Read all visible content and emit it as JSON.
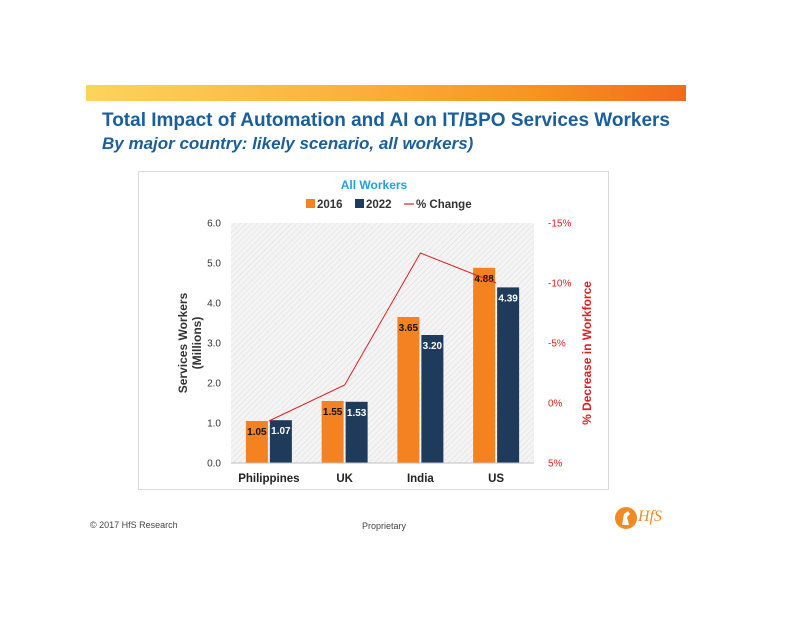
{
  "slide": {
    "title": "Total Impact of Automation and AI on IT/BPO Services Workers",
    "subtitle": "By major country: likely scenario, all workers)",
    "footer_left": "© 2017 HfS Research",
    "footer_center": "Proprietary",
    "logo_text": "HfS",
    "banner_colors": [
      "#fcd45c",
      "#fbb03b",
      "#f79420",
      "#f26a1b"
    ]
  },
  "chart_data": {
    "type": "bar",
    "title": "All Workers",
    "categories": [
      "Philippines",
      "UK",
      "India",
      "US"
    ],
    "series": [
      {
        "name": "2016",
        "values": [
          1.05,
          1.55,
          3.65,
          4.88
        ],
        "color": "#f58220",
        "labels": [
          "1.05",
          "1.55",
          "3.65",
          "4.88"
        ]
      },
      {
        "name": "2022",
        "values": [
          1.07,
          1.53,
          3.2,
          4.39
        ],
        "color": "#1f3b5c",
        "labels": [
          "1.07",
          "1.53",
          "3.20",
          "4.39"
        ]
      }
    ],
    "line_series": {
      "name": "% Change",
      "values": [
        1.5,
        -1.5,
        -12.5,
        -10
      ],
      "color": "#e02020"
    },
    "ylabel": "Services Workers (Millions)",
    "ylabel_lines": [
      "Services Workers",
      "(Millions)"
    ],
    "y2label": "% Decrease in Workforce",
    "ylim": [
      0,
      6
    ],
    "yticks": [
      "0.0",
      "1.0",
      "2.0",
      "3.0",
      "4.0",
      "5.0",
      "6.0"
    ],
    "y2lim": [
      5,
      -15
    ],
    "y2ticks": [
      "5%",
      "0%",
      "-5%",
      "-10%",
      "-15%"
    ],
    "legend_position": "top",
    "gridlines": false
  }
}
